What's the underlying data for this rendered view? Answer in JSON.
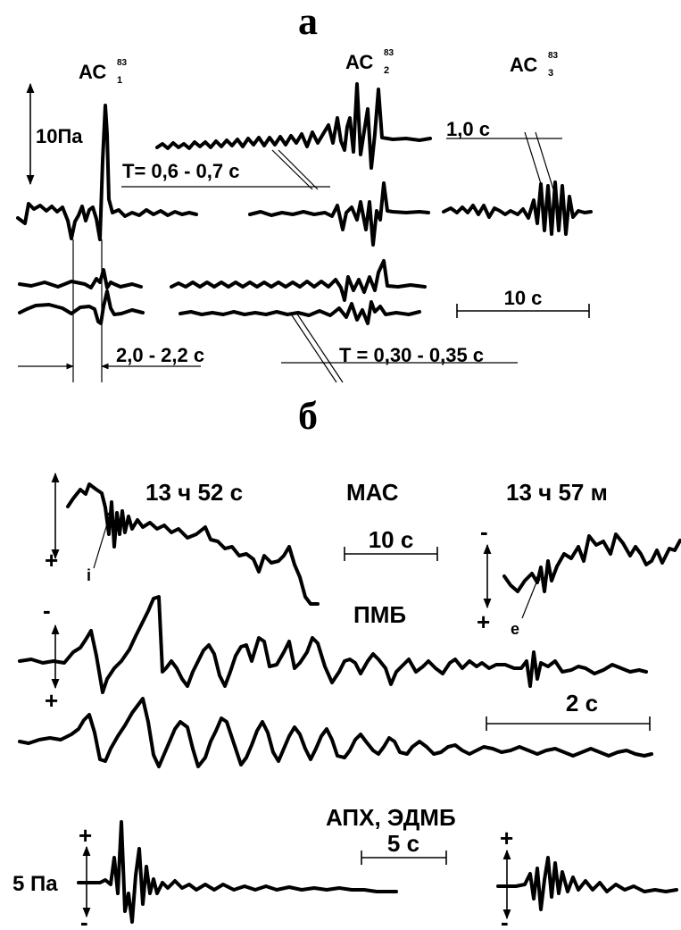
{
  "panel_a": {
    "letter": "а",
    "labels": {
      "ac1": "АС",
      "ac1_sup": "83",
      "ac1_sub": "1",
      "ac2": "АС",
      "ac2_sup": "83",
      "ac2_sub": "2",
      "ac3": "АС",
      "ac3_sup": "83",
      "ac3_sub": "3",
      "pressure_scale": "10Па",
      "period_1": "T= 0,6 - 0,7 с",
      "interval_1": "1,0 с",
      "time_scale": "10 с",
      "interval_2": "2,0 - 2,2 с",
      "period_2": "T = 0,30 - 0,35 с"
    }
  },
  "panel_b": {
    "letter": "б",
    "labels": {
      "time_left": "13 ч 52 с",
      "mac": "МАС",
      "time_right": "13 ч 57 м",
      "scale_mac": "10 с",
      "pmb": "ПМБ",
      "scale_pmb": "2 с",
      "aph": "АПХ, ЭДМБ",
      "scale_aph": "5 с",
      "pressure_scale": "5 Па",
      "plus": "+",
      "minus": "-",
      "marker_i": "i",
      "marker_e": "e"
    }
  }
}
